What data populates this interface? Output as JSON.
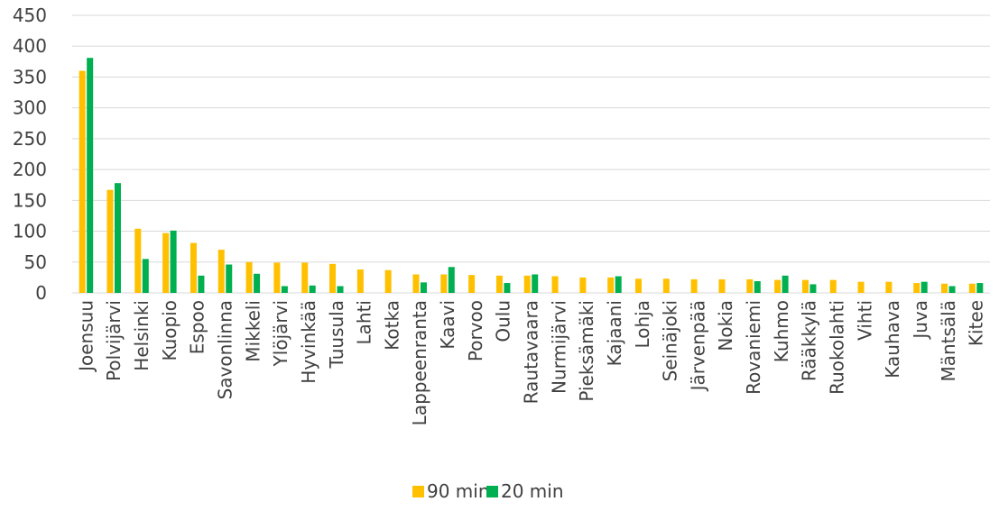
{
  "chart_data": {
    "type": "bar",
    "categories": [
      "Joensuu",
      "Polvijärvi",
      "Helsinki",
      "Kuopio",
      "Espoo",
      "Savonlinna",
      "Mikkeli",
      "Ylöjärvi",
      "Hyvinkää",
      "Tuusula",
      "Lahti",
      "Kotka",
      "Lappeenranta",
      "Kaavi",
      "Porvoo",
      "Oulu",
      "Rautavaara",
      "Nurmijärvi",
      "Pieksämäki",
      "Kajaani",
      "Lohja",
      "Seinäjoki",
      "Järvenpää",
      "Nokia",
      "Rovaniemi",
      "Kuhmo",
      "Rääkkylä",
      "Ruokolahti",
      "Vihti",
      "Kauhava",
      "Juva",
      "Mäntsälä",
      "Kitee"
    ],
    "series": [
      {
        "name": "90 min",
        "color": "#FFC000",
        "values": [
          360,
          167,
          104,
          97,
          81,
          70,
          50,
          49,
          49,
          47,
          38,
          37,
          30,
          30,
          29,
          28,
          28,
          27,
          25,
          25,
          23,
          23,
          22,
          22,
          22,
          21,
          21,
          21,
          18,
          18,
          16,
          15,
          15
        ]
      },
      {
        "name": "20 min",
        "color": "#00B050",
        "values": [
          381,
          178,
          55,
          101,
          28,
          46,
          31,
          11,
          12,
          11,
          0,
          0,
          17,
          42,
          0,
          16,
          30,
          0,
          0,
          27,
          0,
          0,
          0,
          0,
          19,
          28,
          14,
          0,
          0,
          0,
          18,
          11,
          16
        ]
      }
    ],
    "yticks": [
      0,
      50,
      100,
      150,
      200,
      250,
      300,
      350,
      400,
      450
    ],
    "ylim": [
      0,
      450
    ],
    "grid": true,
    "legend": "bottom",
    "title": "",
    "xlabel": "",
    "ylabel": ""
  }
}
